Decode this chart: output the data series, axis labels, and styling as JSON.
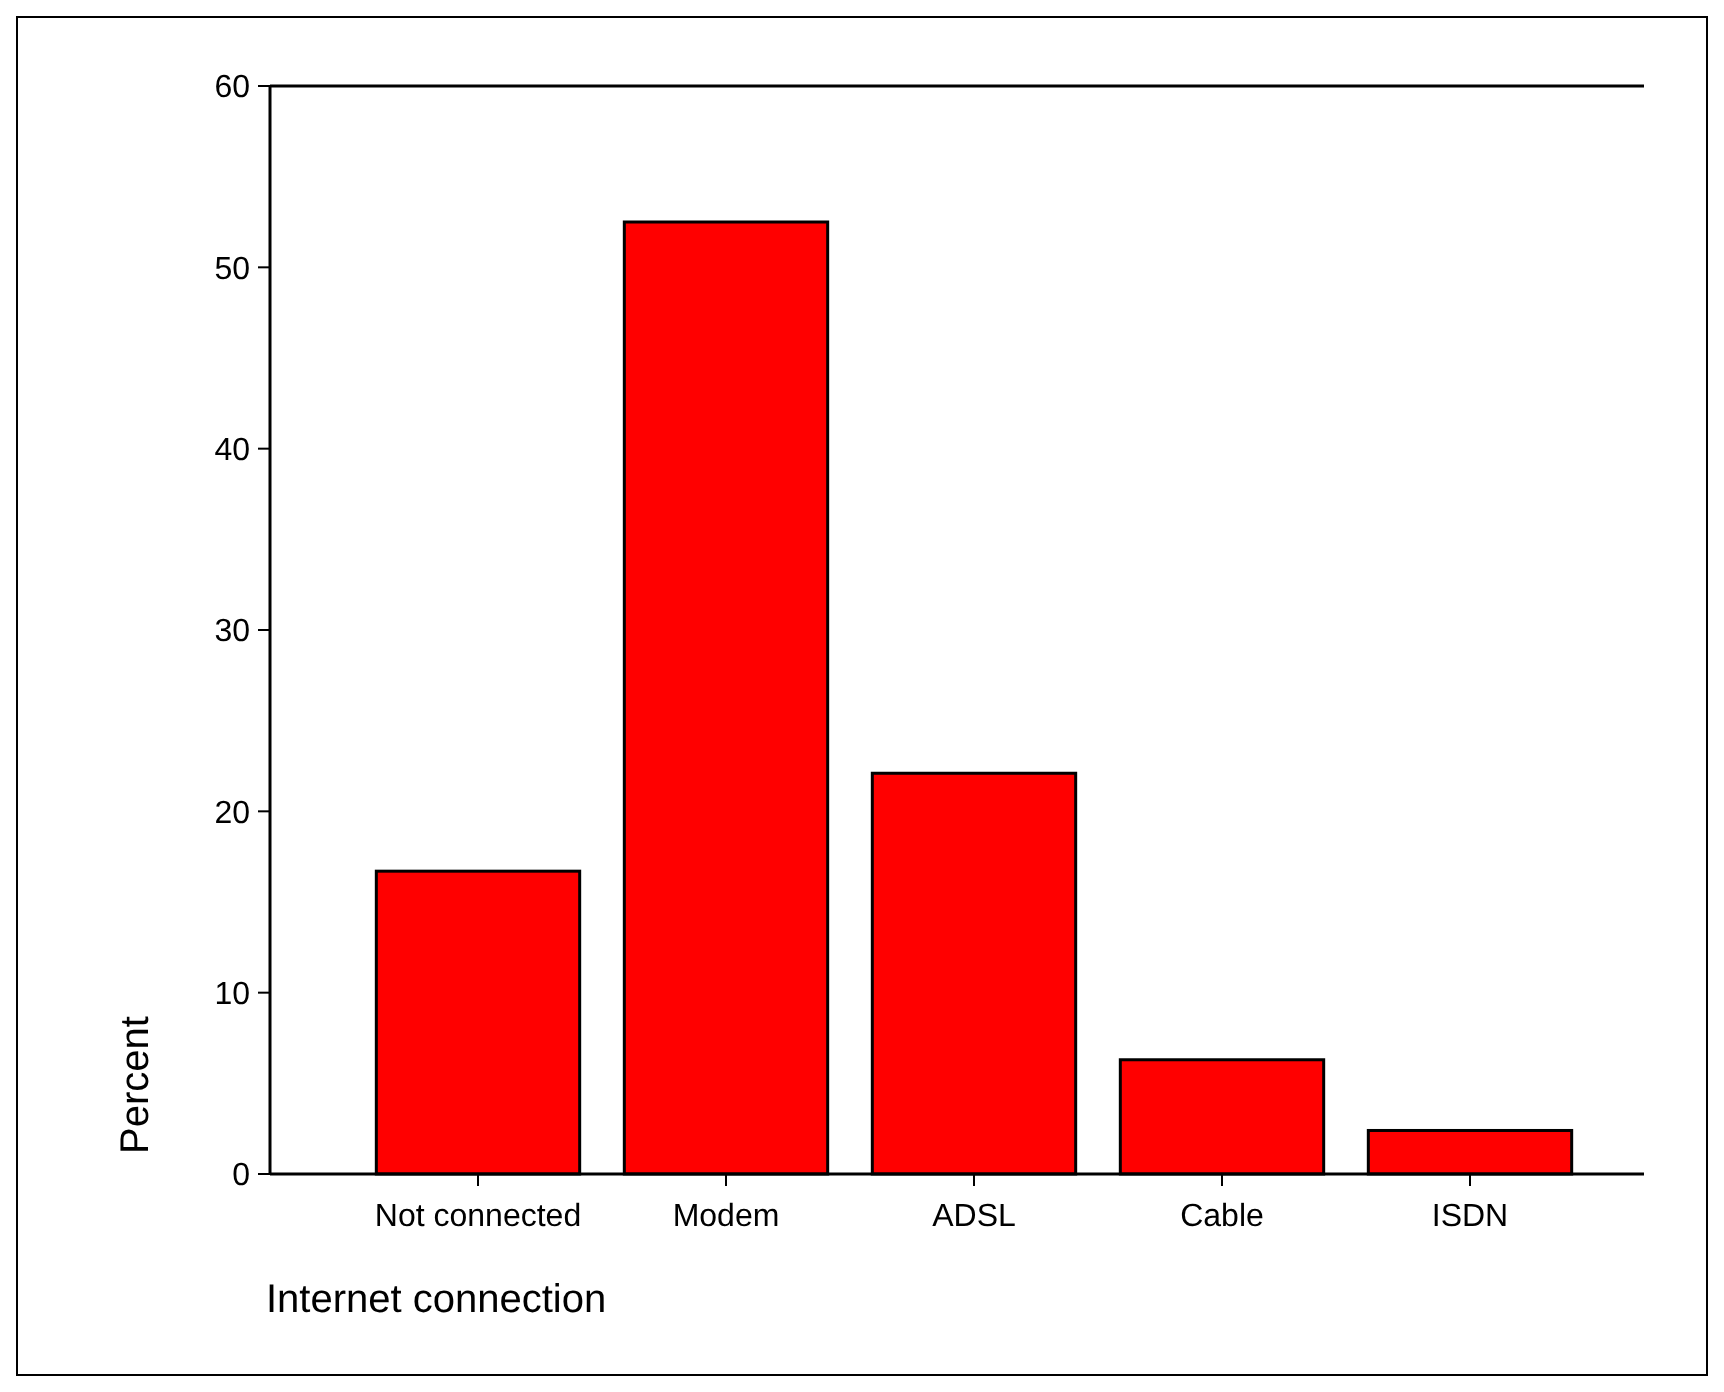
{
  "chart_data": {
    "type": "bar",
    "xlabel": "Internet connection",
    "ylabel": "Percent",
    "categories": [
      "Not connected",
      "Modem",
      "ADSL",
      "Cable",
      "ISDN"
    ],
    "values": [
      16.7,
      52.5,
      22.1,
      6.3,
      2.4
    ],
    "color": "#ff0000",
    "ylim": [
      0,
      60
    ],
    "yticks": [
      0,
      10,
      20,
      30,
      40,
      50,
      60
    ],
    "grid": false
  }
}
